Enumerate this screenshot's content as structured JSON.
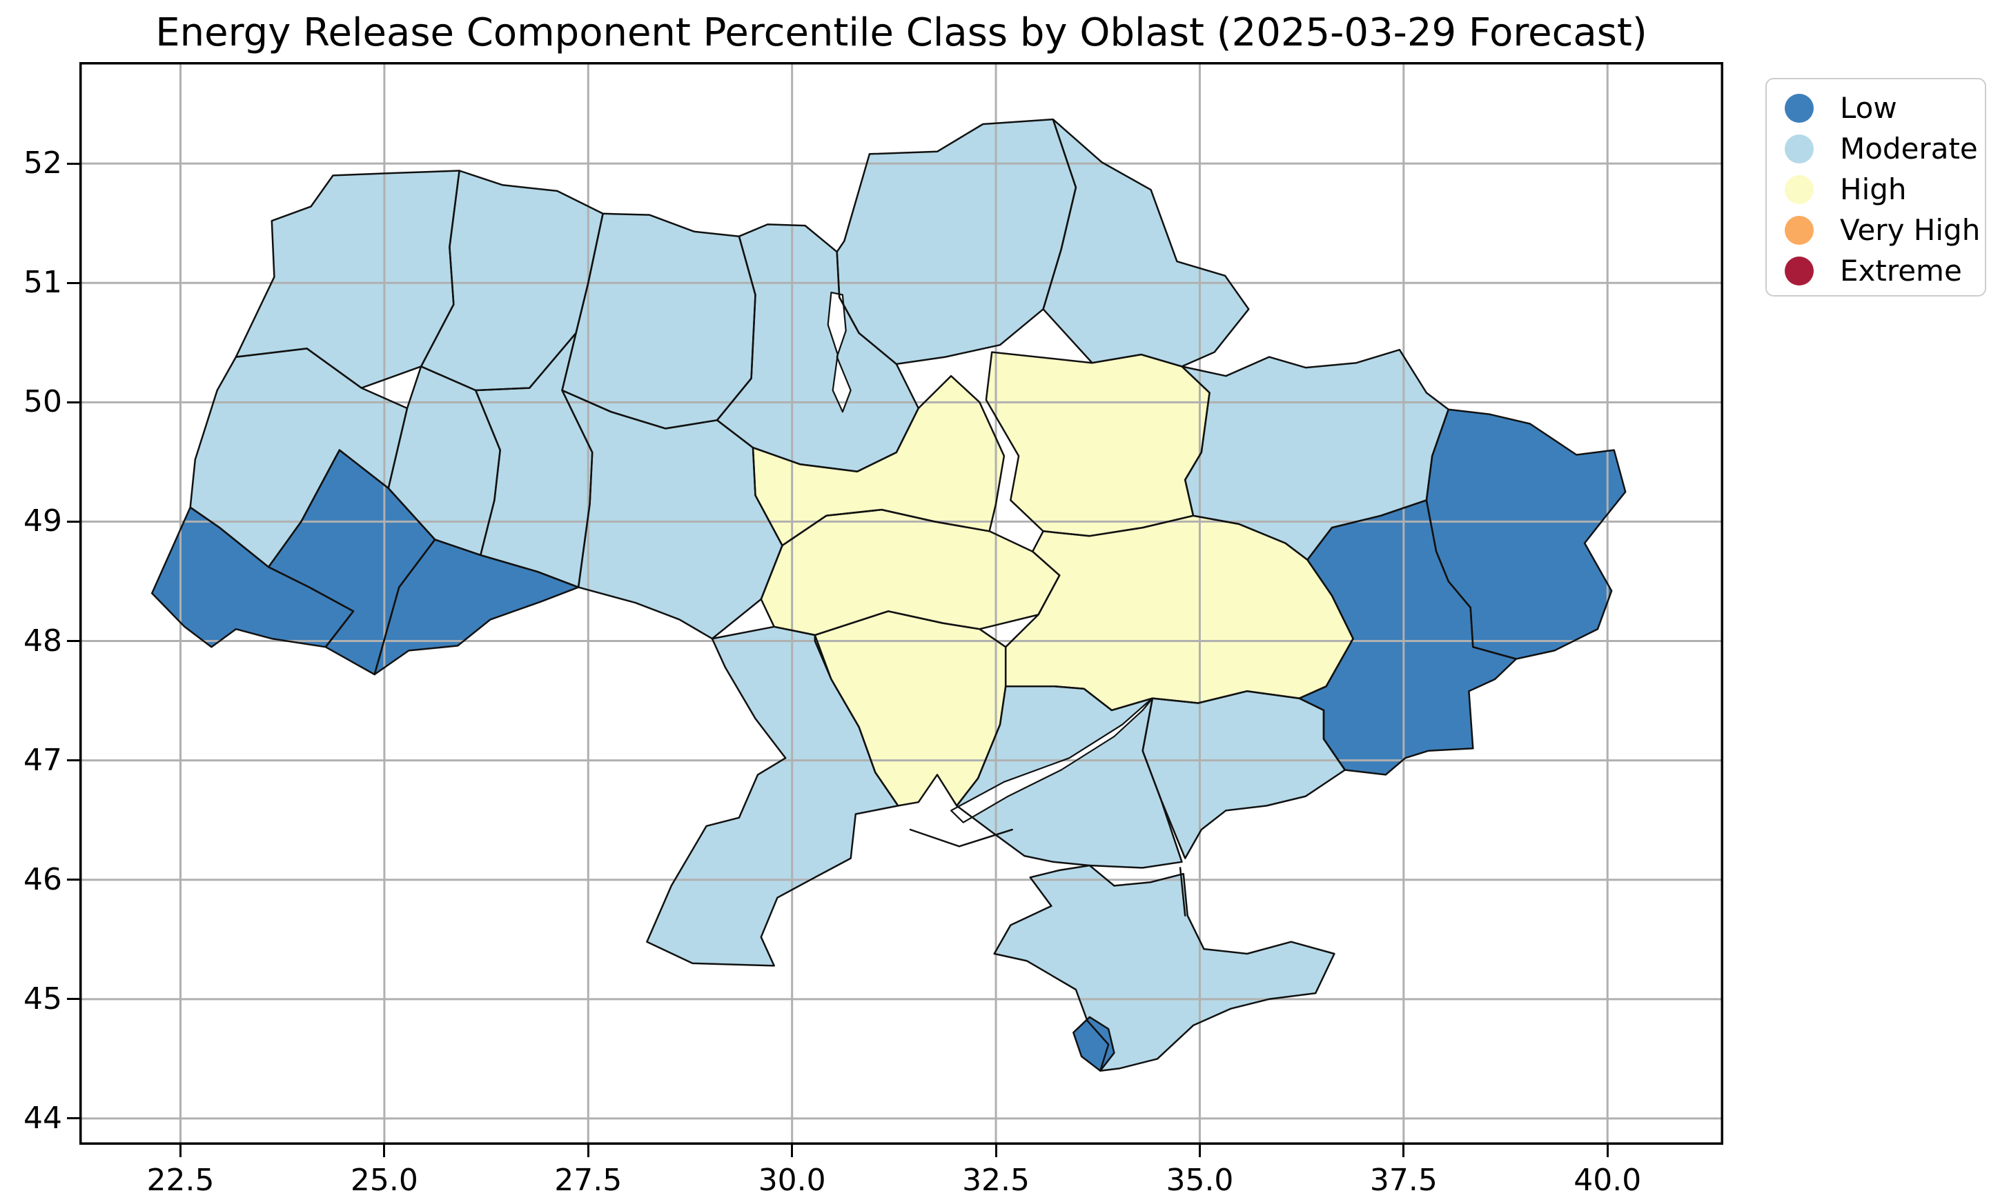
{
  "title": "Energy Release Component Percentile Class by Oblast (2025-03-29 Forecast)",
  "legend": {
    "items": [
      {
        "label": "Low",
        "color": "#3d7fba"
      },
      {
        "label": "Moderate",
        "color": "#b5d9e8"
      },
      {
        "label": "High",
        "color": "#fbfbc6"
      },
      {
        "label": "Very High",
        "color": "#fbab60"
      },
      {
        "label": "Extreme",
        "color": "#a81c3a"
      }
    ]
  },
  "chart_data": {
    "type": "choropleth",
    "title": "Energy Release Component Percentile Class by Oblast (2025-03-29 Forecast)",
    "geography": "Ukraine oblasts",
    "forecast_date": "2025-03-29",
    "variable": "Energy Release Component percentile class",
    "legend_entries": [
      "Low",
      "Moderate",
      "High",
      "Very High",
      "Extreme"
    ],
    "x_axis": {
      "range": [
        21.26,
        41.42
      ],
      "ticks": [
        {
          "value": 22.5,
          "label": "22.5"
        },
        {
          "value": 25.0,
          "label": "25.0"
        },
        {
          "value": 27.5,
          "label": "27.5"
        },
        {
          "value": 30.0,
          "label": "30.0"
        },
        {
          "value": 32.5,
          "label": "32.5"
        },
        {
          "value": 35.0,
          "label": "35.0"
        },
        {
          "value": 37.5,
          "label": "37.5"
        },
        {
          "value": 40.0,
          "label": "40.0"
        }
      ]
    },
    "y_axis": {
      "range": [
        43.78,
        52.85
      ],
      "ticks": [
        {
          "value": 44,
          "label": "44"
        },
        {
          "value": 45,
          "label": "45"
        },
        {
          "value": 46,
          "label": "46"
        },
        {
          "value": 47,
          "label": "47"
        },
        {
          "value": 48,
          "label": "48"
        },
        {
          "value": 49,
          "label": "49"
        },
        {
          "value": 50,
          "label": "50"
        },
        {
          "value": 51,
          "label": "51"
        },
        {
          "value": 52,
          "label": "52"
        }
      ]
    },
    "grid": {
      "show": true,
      "color": "#b0b0b0"
    },
    "legend_position": "outside upper right",
    "water_features": [
      "kyiv_reservoir",
      "lower_dnieper",
      "tendra_spit",
      "arabat_spit"
    ],
    "regions": [
      {
        "id": "volyn",
        "class": "Moderate"
      },
      {
        "id": "rivne",
        "class": "Moderate"
      },
      {
        "id": "zhytomyr",
        "class": "Moderate"
      },
      {
        "id": "kyiv",
        "class": "Moderate"
      },
      {
        "id": "chernihiv",
        "class": "Moderate"
      },
      {
        "id": "sumy",
        "class": "Moderate"
      },
      {
        "id": "lviv",
        "class": "Moderate"
      },
      {
        "id": "ternopil",
        "class": "Moderate"
      },
      {
        "id": "khmelnytskyi",
        "class": "Moderate"
      },
      {
        "id": "vinnytsia",
        "class": "Moderate"
      },
      {
        "id": "zakarpattia",
        "class": "Low"
      },
      {
        "id": "ivano_frankivsk",
        "class": "Low"
      },
      {
        "id": "chernivtsi",
        "class": "Low"
      },
      {
        "id": "cherkasy",
        "class": "High"
      },
      {
        "id": "poltava",
        "class": "High"
      },
      {
        "id": "kirovohrad",
        "class": "High"
      },
      {
        "id": "dnipropetrovsk",
        "class": "High"
      },
      {
        "id": "mykolaiv",
        "class": "High"
      },
      {
        "id": "odesa",
        "class": "Moderate"
      },
      {
        "id": "kherson",
        "class": "Moderate"
      },
      {
        "id": "zaporizhzhia",
        "class": "Moderate"
      },
      {
        "id": "kharkiv",
        "class": "Moderate"
      },
      {
        "id": "donetsk",
        "class": "Low"
      },
      {
        "id": "luhansk",
        "class": "Low"
      },
      {
        "id": "crimea",
        "class": "Moderate"
      },
      {
        "id": "sevastopol",
        "class": "Low"
      }
    ]
  }
}
